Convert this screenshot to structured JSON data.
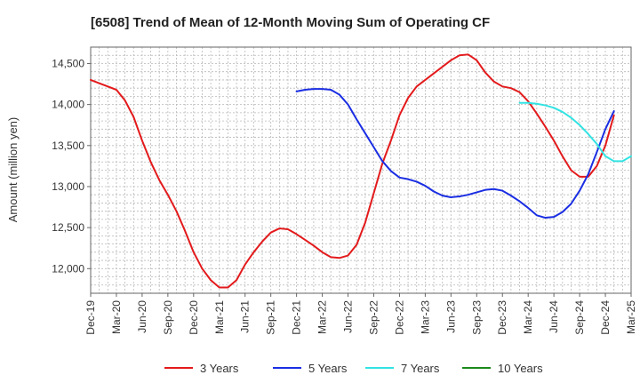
{
  "chart_data": {
    "type": "line",
    "title": "[6508]  Trend of Mean of 12-Month Moving Sum of Operating CF",
    "xlabel": "",
    "ylabel": "Amount (million yen)",
    "x_ticks": [
      "Dec-19",
      "Mar-20",
      "Jun-20",
      "Sep-20",
      "Dec-20",
      "Mar-21",
      "Jun-21",
      "Sep-21",
      "Dec-21",
      "Mar-22",
      "Jun-22",
      "Sep-22",
      "Dec-22",
      "Mar-23",
      "Jun-23",
      "Sep-23",
      "Dec-23",
      "Mar-24",
      "Jun-24",
      "Sep-24",
      "Dec-24",
      "Mar-25"
    ],
    "y_ticks": [
      12000,
      12500,
      13000,
      13500,
      14000,
      14500
    ],
    "y_tick_labels": [
      "12,000",
      "12,500",
      "13,000",
      "13,500",
      "14,000",
      "14,500"
    ],
    "ylim": [
      11700,
      14700
    ],
    "x_range_months": [
      0,
      63
    ],
    "grid": true,
    "legend_position": "bottom",
    "series": [
      {
        "name": "3 Years",
        "color": "#e31a1c",
        "x_start": 0,
        "values": [
          14300,
          14260,
          14220,
          14180,
          14050,
          13850,
          13560,
          13300,
          13080,
          12900,
          12700,
          12460,
          12200,
          12000,
          11860,
          11770,
          11770,
          11860,
          12050,
          12200,
          12330,
          12440,
          12490,
          12480,
          12420,
          12350,
          12280,
          12200,
          12140,
          12130,
          12160,
          12290,
          12560,
          12920,
          13280,
          13560,
          13870,
          14080,
          14220,
          14300,
          14380,
          14460,
          14540,
          14600,
          14610,
          14540,
          14390,
          14280,
          14220,
          14200,
          14150,
          14040,
          13890,
          13730,
          13560,
          13370,
          13200,
          13120,
          13120,
          13250,
          13500,
          13870
        ]
      },
      {
        "name": "5 Years",
        "color": "#1a2ee3",
        "x_start": 24,
        "values": [
          14160,
          14180,
          14190,
          14190,
          14180,
          14120,
          14000,
          13820,
          13650,
          13480,
          13310,
          13190,
          13110,
          13090,
          13060,
          13010,
          12940,
          12890,
          12870,
          12880,
          12900,
          12930,
          12960,
          12970,
          12950,
          12890,
          12820,
          12740,
          12650,
          12620,
          12630,
          12690,
          12790,
          12950,
          13150,
          13420,
          13700,
          13920
        ]
      },
      {
        "name": "7 Years",
        "color": "#33e3e3",
        "x_start": 50,
        "values": [
          14020,
          14020,
          14010,
          13990,
          13960,
          13910,
          13840,
          13750,
          13640,
          13520,
          13370,
          13310,
          13310,
          13370
        ]
      },
      {
        "name": "10 Years",
        "color": "#1a8a1a",
        "x_start": null,
        "values": []
      }
    ]
  }
}
